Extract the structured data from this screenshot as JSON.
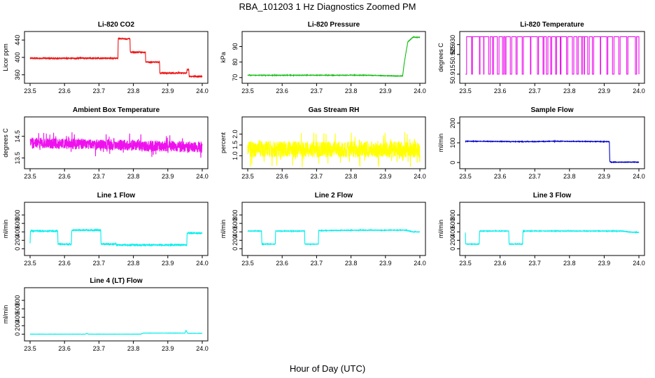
{
  "figure": {
    "title": "RBA_101203  1 Hz Diagnostics Zoomed PM",
    "xlabel": "Hour of Day (UTC)"
  },
  "chart_data": [
    {
      "type": "line",
      "title": "Li-820 CO2",
      "xlabel": "",
      "ylabel": "Licor ppm",
      "color": "#ee1111",
      "xlim": [
        23.5,
        24.0
      ],
      "ylim": [
        350,
        450
      ],
      "xticks": [
        "23.5",
        "23.6",
        "23.7",
        "23.8",
        "23.9",
        "24.0"
      ],
      "yticks": [
        "360",
        "400",
        "440"
      ],
      "series": [
        {
          "x": [
            23.5,
            23.755,
            23.756,
            23.79,
            23.791,
            23.835,
            23.836,
            23.876,
            23.877,
            23.955,
            23.956,
            23.961,
            23.962,
            24.0
          ],
          "values": [
            398,
            398,
            443,
            443,
            412,
            412,
            389,
            389,
            364,
            364,
            372,
            372,
            356,
            356
          ],
          "noise": 1.2
        }
      ]
    },
    {
      "type": "line",
      "title": "Li-820 Pressure",
      "xlabel": "",
      "ylabel": "kPa",
      "color": "#11bb11",
      "xlim": [
        23.5,
        24.0
      ],
      "ylim": [
        69,
        97
      ],
      "xticks": [
        "23.5",
        "23.6",
        "23.7",
        "23.8",
        "23.9",
        "24.0"
      ],
      "yticks": [
        "70",
        "80",
        "90"
      ],
      "series": [
        {
          "x": [
            23.5,
            23.85,
            23.93,
            23.95,
            23.955,
            23.965,
            23.98,
            24.0
          ],
          "values": [
            71.5,
            71.5,
            71,
            71,
            80,
            93,
            96,
            96
          ],
          "noise": 0.15
        }
      ]
    },
    {
      "type": "line",
      "title": "Li-820 Temperature",
      "xlabel": "",
      "ylabel": "degrees C",
      "color": "#ee11ee",
      "xlim": [
        23.5,
        24.0
      ],
      "ylim": [
        50.9125,
        50.9345
      ],
      "xticks": [
        "23.5",
        "23.6",
        "23.7",
        "23.8",
        "23.9",
        "24.0"
      ],
      "yticks": [
        "50.915",
        "50.925",
        "50.930"
      ],
      "series": [
        {
          "x": [
            23.5,
            24.0
          ],
          "values": [
            50.915,
            50.934
          ],
          "switching": true
        }
      ]
    },
    {
      "type": "line",
      "title": "Ambient Box Temperature",
      "xlabel": "",
      "ylabel": "degrees C",
      "color": "#ee11ee",
      "xlim": [
        23.5,
        24.0
      ],
      "ylim": [
        13.2,
        15.2
      ],
      "xticks": [
        "23.5",
        "23.6",
        "23.7",
        "23.8",
        "23.9",
        "24.0"
      ],
      "yticks": [
        "13.5",
        "14.5"
      ],
      "series": [
        {
          "x": [
            23.5,
            23.75,
            24.0
          ],
          "values": [
            14.2,
            14.1,
            14.0
          ],
          "noise": 0.25
        }
      ]
    },
    {
      "type": "line",
      "title": "Gas Stream RH",
      "xlabel": "",
      "ylabel": "percent",
      "color": "#ffff00",
      "xlim": [
        23.5,
        24.0
      ],
      "ylim": [
        0.6,
        2.6
      ],
      "xticks": [
        "23.5",
        "23.6",
        "23.7",
        "23.8",
        "23.9",
        "24.0"
      ],
      "yticks": [
        "1.0",
        "1.5",
        "2.0"
      ],
      "series": [
        {
          "x": [
            23.5,
            24.0
          ],
          "values": [
            1.3,
            1.3
          ],
          "noise": 0.38
        }
      ]
    },
    {
      "type": "line",
      "title": "Sample Flow",
      "xlabel": "",
      "ylabel": "ml/min",
      "color": "#0000cc",
      "xlim": [
        23.5,
        24.0
      ],
      "ylim": [
        -10,
        210
      ],
      "xticks": [
        "23.5",
        "23.6",
        "23.7",
        "23.8",
        "23.9",
        "24.0"
      ],
      "yticks": [
        "0",
        "100",
        "200"
      ],
      "series": [
        {
          "x": [
            23.5,
            23.7,
            23.75,
            23.915,
            23.916,
            23.92,
            24.0
          ],
          "values": [
            108,
            106,
            108,
            106,
            5,
            2,
            2
          ],
          "noise": 1.2
        }
      ]
    },
    {
      "type": "line",
      "title": "Line 1 Flow",
      "xlabel": "",
      "ylabel": "ml/min",
      "color": "#00eeee",
      "xlim": [
        23.5,
        24.0
      ],
      "ylim": [
        -60,
        1000
      ],
      "xticks": [
        "23.5",
        "23.6",
        "23.7",
        "23.8",
        "23.9",
        "24.0"
      ],
      "yticks": [
        "0",
        "200",
        "400",
        "600",
        "800"
      ],
      "series": [
        {
          "x": [
            23.5,
            23.501,
            23.58,
            23.581,
            23.62,
            23.621,
            23.705,
            23.706,
            23.75,
            23.751,
            23.955,
            23.956,
            24.0
          ],
          "values": [
            120,
            420,
            420,
            110,
            110,
            440,
            440,
            110,
            110,
            90,
            90,
            370,
            370
          ],
          "noise": 12
        }
      ]
    },
    {
      "type": "line",
      "title": "Line 2 Flow",
      "xlabel": "",
      "ylabel": "ml/min",
      "color": "#00eeee",
      "xlim": [
        23.5,
        24.0
      ],
      "ylim": [
        -60,
        1000
      ],
      "xticks": [
        "23.5",
        "23.6",
        "23.7",
        "23.8",
        "23.9",
        "24.0"
      ],
      "yticks": [
        "0",
        "200",
        "400",
        "600",
        "800"
      ],
      "series": [
        {
          "x": [
            23.5,
            23.54,
            23.541,
            23.58,
            23.581,
            23.665,
            23.666,
            23.705,
            23.706,
            23.85,
            23.96,
            23.98,
            24.0
          ],
          "values": [
            420,
            420,
            110,
            110,
            420,
            420,
            110,
            110,
            430,
            440,
            440,
            400,
            400
          ],
          "noise": 6
        }
      ]
    },
    {
      "type": "line",
      "title": "Line 3 Flow",
      "xlabel": "",
      "ylabel": "ml/min",
      "color": "#00eeee",
      "xlim": [
        23.5,
        24.0
      ],
      "ylim": [
        -60,
        1000
      ],
      "xticks": [
        "23.5",
        "23.6",
        "23.7",
        "23.8",
        "23.9",
        "24.0"
      ],
      "yticks": [
        "0",
        "200",
        "400",
        "600",
        "800"
      ],
      "series": [
        {
          "x": [
            23.5,
            23.501,
            23.54,
            23.541,
            23.625,
            23.626,
            23.665,
            23.666,
            23.95,
            23.98,
            24.0
          ],
          "values": [
            380,
            110,
            110,
            420,
            420,
            110,
            110,
            420,
            420,
            390,
            390
          ],
          "noise": 6
        }
      ]
    },
    {
      "type": "line",
      "title": "Line 4 (LT) Flow",
      "xlabel": "",
      "ylabel": "ml/min",
      "color": "#00eeee",
      "xlim": [
        23.5,
        24.0
      ],
      "ylim": [
        -60,
        1000
      ],
      "xticks": [
        "23.5",
        "23.6",
        "23.7",
        "23.8",
        "23.9",
        "24.0"
      ],
      "yticks": [
        "0",
        "200",
        "400",
        "600",
        "800"
      ],
      "series": [
        {
          "x": [
            23.5,
            23.66,
            23.665,
            23.67,
            23.82,
            23.83,
            23.95,
            23.953,
            23.957,
            23.96,
            24.0
          ],
          "values": [
            0,
            0,
            15,
            0,
            0,
            25,
            25,
            90,
            25,
            20,
            20
          ],
          "noise": 2
        }
      ]
    }
  ]
}
